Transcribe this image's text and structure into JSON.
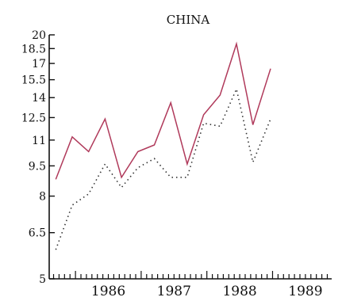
{
  "chart_data": {
    "type": "line",
    "title": "CHINA",
    "xlabel": "",
    "ylabel": "",
    "y_scale": "log",
    "ylim": [
      5,
      20
    ],
    "yticks": [
      5,
      6.5,
      8,
      9.5,
      11,
      12.5,
      14,
      15.5,
      17,
      18.5,
      20
    ],
    "xlim": [
      1985.6,
      1989.9
    ],
    "xticks": [
      1986,
      1987,
      1988,
      1989
    ],
    "grid": false,
    "legend": "none",
    "series": [
      {
        "style": "solid",
        "color": "#b03a5b",
        "x": [
          1985.7,
          1985.95,
          1986.2,
          1986.45,
          1986.7,
          1986.95,
          1987.2,
          1987.45,
          1987.7,
          1987.95,
          1988.2,
          1988.45,
          1988.7,
          1988.97
        ],
        "y": [
          8.8,
          11.2,
          10.3,
          12.4,
          8.9,
          10.3,
          10.7,
          13.6,
          9.6,
          12.7,
          14.2,
          19.0,
          12.0,
          16.5
        ]
      },
      {
        "style": "dotted",
        "color": "#333333",
        "x": [
          1985.7,
          1985.95,
          1986.2,
          1986.45,
          1986.7,
          1986.95,
          1987.2,
          1987.45,
          1987.7,
          1987.95,
          1988.2,
          1988.45,
          1988.7,
          1988.97
        ],
        "y": [
          5.9,
          7.6,
          8.1,
          9.6,
          8.4,
          9.4,
          9.9,
          8.9,
          8.9,
          12.1,
          11.9,
          14.7,
          9.7,
          12.4
        ]
      }
    ]
  }
}
